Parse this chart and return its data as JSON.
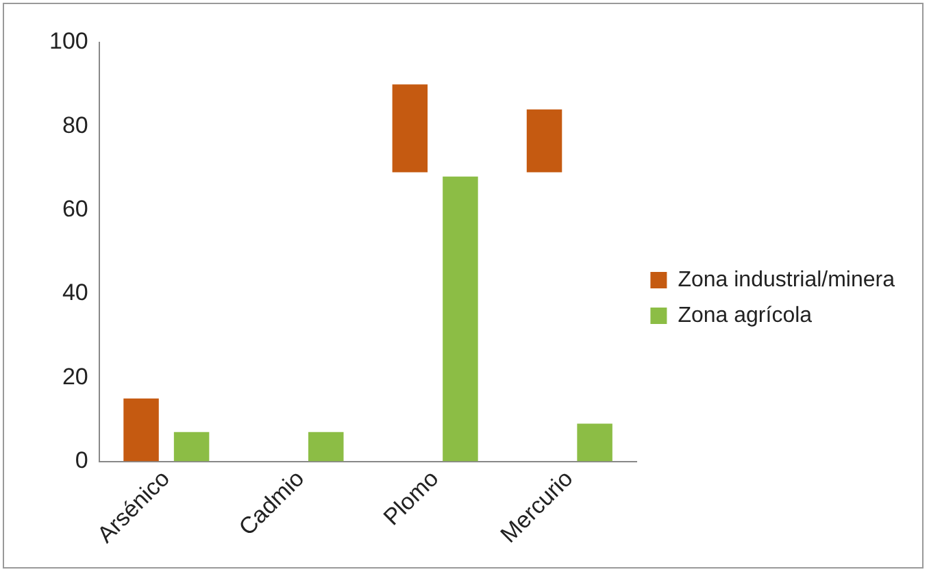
{
  "chart_data": {
    "type": "bar",
    "categories": [
      "Arsénico",
      "Cadmio",
      "Plomo",
      "Mercurio"
    ],
    "series": [
      {
        "name": "Zona industrial/minera",
        "color": "#c55a11",
        "values": [
          15,
          null,
          21,
          15
        ],
        "base": [
          0,
          null,
          69,
          69
        ]
      },
      {
        "name": "Zona agrícola",
        "color": "#8cbd45",
        "values": [
          7,
          7,
          68,
          9
        ]
      }
    ],
    "ylim": [
      0,
      100
    ],
    "yticks": [
      0,
      20,
      40,
      60,
      80,
      100
    ],
    "grid": false,
    "legend": "right"
  }
}
